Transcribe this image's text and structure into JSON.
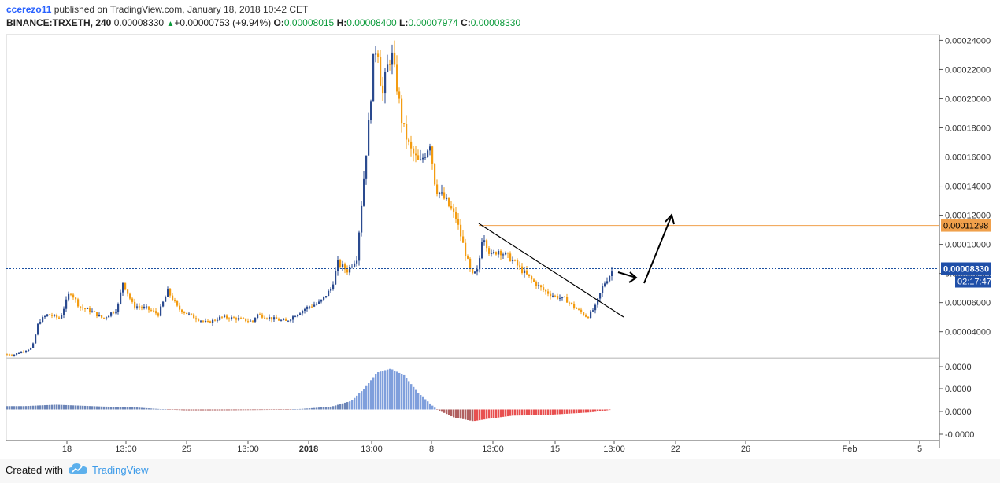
{
  "header": {
    "user": "ccerezo11",
    "published": " published on TradingView.com, January 18, 2018 10:42 CET",
    "symbol": "BINANCE:TRXETH, 240",
    "last": "0.00008330",
    "change": "+0.00000753 (+9.94%)",
    "o_label": "O:",
    "o": "0.00008015",
    "h_label": "H:",
    "h": "0.00008400",
    "l_label": "L:",
    "l": "0.00007974",
    "c_label": "C:",
    "c": "0.00008330"
  },
  "footer": {
    "created": "Created with",
    "brand": "TradingView",
    "logo_icon": "tradingview-cloud-icon"
  },
  "colors": {
    "up": "#2a4a8f",
    "down": "#f39c12",
    "hist_pos": "#7a9ee0",
    "hist_neg": "#e05a5a",
    "hline": "#f0a04b",
    "price_line": "#1a4fa0",
    "trend": "#000000",
    "axis_text": "#333333"
  },
  "chart_data": {
    "type": "candlestick",
    "y_range": [
      2.2e-05,
      0.000244
    ],
    "y_ticks": [
      "0.00024000",
      "0.00022000",
      "0.00020000",
      "0.00018000",
      "0.00016000",
      "0.00014000",
      "0.00012000",
      "0.00010000",
      "0.00008000",
      "0.00006000",
      "0.00004000"
    ],
    "x_ticks": [
      "18",
      "13:00",
      "25",
      "13:00",
      "2018",
      "13:00",
      "8",
      "13:00",
      "15",
      "13:00",
      "22",
      "26",
      "Feb",
      "5"
    ],
    "horizontal_level": {
      "value": 0.00011298,
      "label": "0.00011298"
    },
    "current_price": {
      "value": 8.33e-05,
      "label": "0.00008330",
      "countdown": "02:17:47"
    },
    "close_path": [
      [
        0,
        2.5e-05
      ],
      [
        15,
        2.4e-05
      ],
      [
        40,
        2.9e-05
      ],
      [
        48,
        4.7e-05
      ],
      [
        60,
        5.2e-05
      ],
      [
        75,
        4.9e-05
      ],
      [
        88,
        6.8e-05
      ],
      [
        100,
        5.7e-05
      ],
      [
        115,
        5.4e-05
      ],
      [
        130,
        4.9e-05
      ],
      [
        148,
        5.6e-05
      ],
      [
        155,
        7.4e-05
      ],
      [
        168,
        5.8e-05
      ],
      [
        185,
        5.6e-05
      ],
      [
        200,
        5.2e-05
      ],
      [
        212,
        6.8e-05
      ],
      [
        225,
        5.6e-05
      ],
      [
        245,
        5e-05
      ],
      [
        262,
        4.6e-05
      ],
      [
        280,
        5e-05
      ],
      [
        300,
        4.9e-05
      ],
      [
        320,
        4.7e-05
      ],
      [
        325,
        5.2e-05
      ],
      [
        345,
        4.9e-05
      ],
      [
        362,
        4.7e-05
      ],
      [
        375,
        5.2e-05
      ],
      [
        390,
        5.7e-05
      ],
      [
        405,
        6e-05
      ],
      [
        420,
        7e-05
      ],
      [
        428,
        8.7e-05
      ],
      [
        440,
        8.2e-05
      ],
      [
        452,
        9.1e-05
      ],
      [
        458,
        0.000128
      ],
      [
        463,
        0.000158
      ],
      [
        468,
        0.000188
      ],
      [
        473,
        0.000225
      ],
      [
        478,
        0.00024
      ],
      [
        484,
        0.0002
      ],
      [
        490,
        0.00022
      ],
      [
        496,
        0.000232
      ],
      [
        502,
        0.000212
      ],
      [
        510,
        0.000182
      ],
      [
        520,
        0.000165
      ],
      [
        532,
        0.000155
      ],
      [
        545,
        0.00017
      ],
      [
        552,
        0.000139
      ],
      [
        565,
        0.00013
      ],
      [
        578,
        0.000118
      ],
      [
        592,
        9e-05
      ],
      [
        598,
        7.8e-05
      ],
      [
        606,
        8.2e-05
      ],
      [
        612,
        0.000108
      ],
      [
        622,
        9.2e-05
      ],
      [
        632,
        9.6e-05
      ],
      [
        648,
        9e-05
      ],
      [
        662,
        8.2e-05
      ],
      [
        675,
        7.5e-05
      ],
      [
        690,
        6.8e-05
      ],
      [
        705,
        6.4e-05
      ],
      [
        718,
        6.2e-05
      ],
      [
        730,
        5.6e-05
      ],
      [
        745,
        5e-05
      ],
      [
        755,
        5.7e-05
      ],
      [
        765,
        7.2e-05
      ],
      [
        778,
        8.3e-05
      ]
    ],
    "histogram": {
      "y_ticks": [
        "0.0000",
        "0.0000",
        "0.0000",
        "-0.0000"
      ],
      "zero_ratio": 0.62,
      "profile": [
        [
          0,
          0.07
        ],
        [
          30,
          0.07
        ],
        [
          70,
          0.1
        ],
        [
          100,
          0.08
        ],
        [
          130,
          0.06
        ],
        [
          165,
          0.05
        ],
        [
          190,
          0.02
        ],
        [
          210,
          0.0
        ],
        [
          235,
          -0.03
        ],
        [
          275,
          -0.03
        ],
        [
          320,
          -0.02
        ],
        [
          360,
          -0.01
        ],
        [
          390,
          0.02
        ],
        [
          420,
          0.06
        ],
        [
          445,
          0.18
        ],
        [
          462,
          0.45
        ],
        [
          478,
          0.78
        ],
        [
          495,
          0.86
        ],
        [
          512,
          0.72
        ],
        [
          530,
          0.35
        ],
        [
          550,
          0.05
        ],
        [
          575,
          -0.28
        ],
        [
          600,
          -0.42
        ],
        [
          620,
          -0.33
        ],
        [
          650,
          -0.22
        ],
        [
          690,
          -0.2
        ],
        [
          720,
          -0.15
        ],
        [
          750,
          -0.1
        ],
        [
          775,
          -0.01
        ]
      ]
    }
  }
}
